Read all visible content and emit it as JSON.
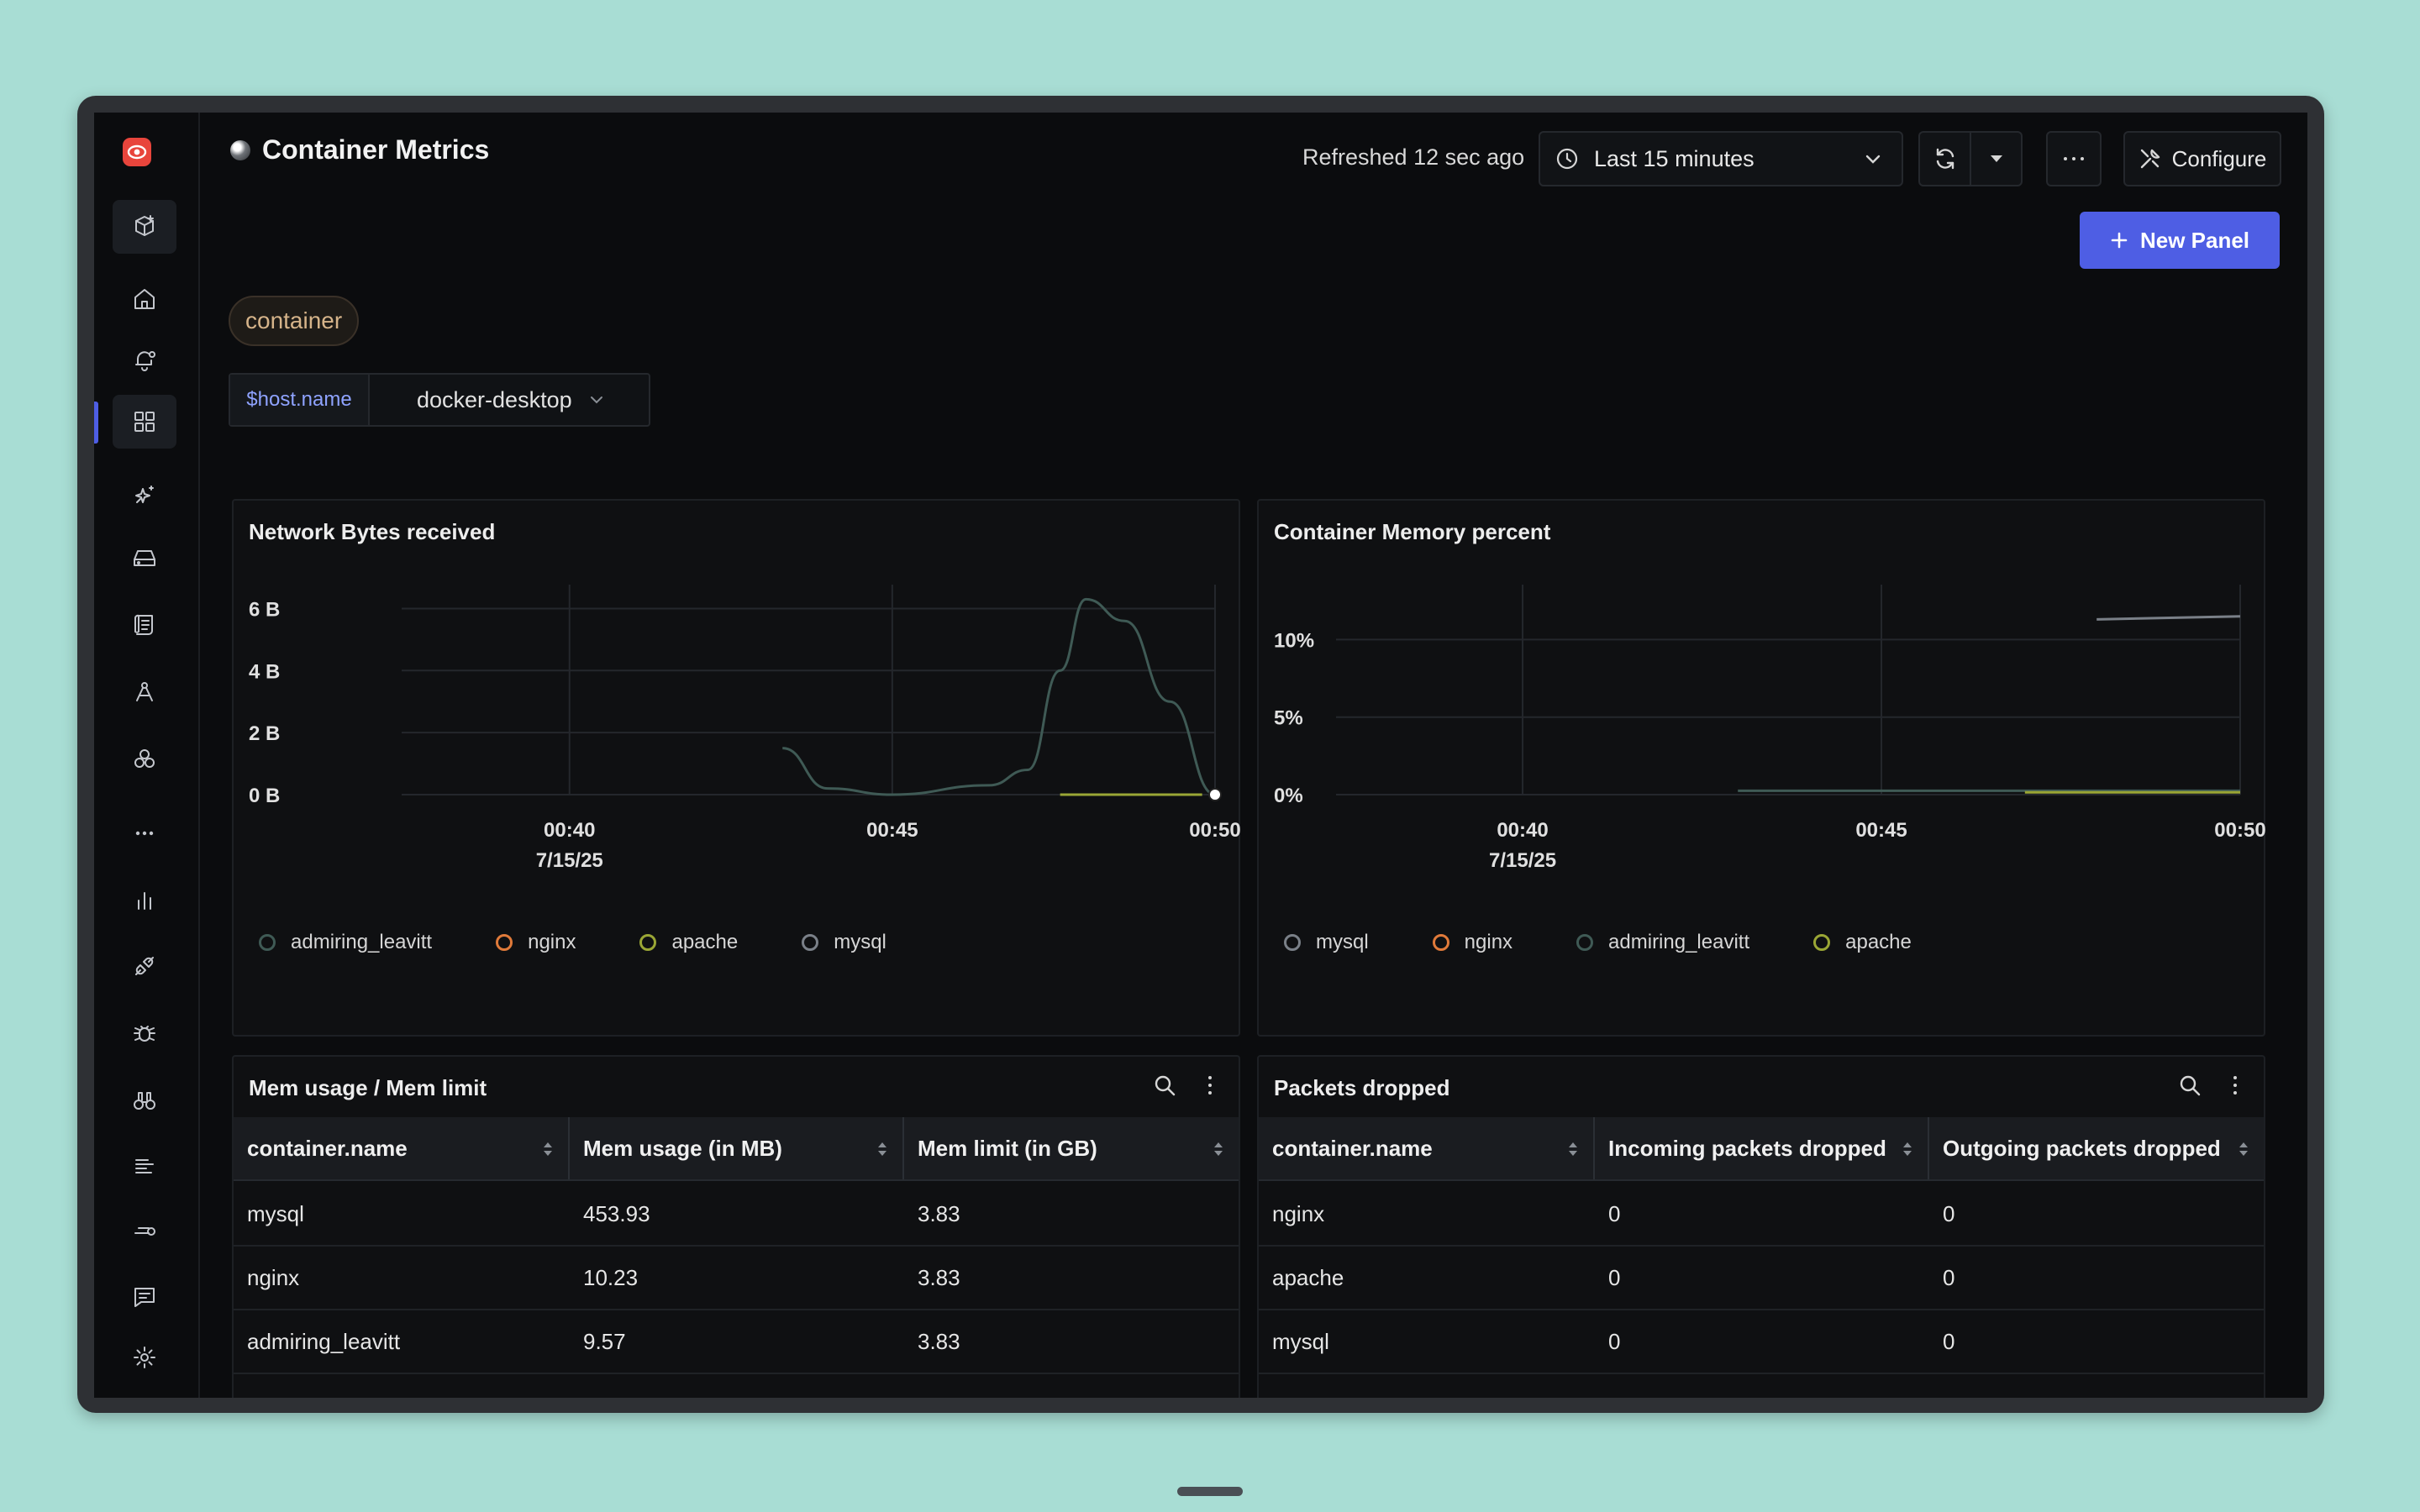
{
  "header": {
    "title": "Container Metrics",
    "refreshed": "Refreshed 12 sec ago",
    "time_range": "Last 15 minutes",
    "configure_label": "Configure",
    "new_panel_label": "New Panel"
  },
  "tag": "container",
  "variable": {
    "name": "$host.name",
    "value": "docker-desktop"
  },
  "sidebar": {
    "items": [
      "logo",
      "cube-add-icon",
      "home-icon",
      "alert-bell-icon",
      "dashboards-icon",
      "sparkle-icon",
      "storage-icon",
      "logs-icon",
      "pipelines-icon",
      "services-icon",
      "more-icon",
      "metrics-icon",
      "integrations-icon",
      "bug-icon",
      "binoculars-icon",
      "list-icon",
      "key-icon",
      "messages-icon",
      "settings-icon"
    ],
    "active": "dashboards-icon"
  },
  "panels": {
    "network": {
      "title": "Network Bytes received",
      "legend": [
        {
          "name": "admiring_leavitt",
          "color": "#3f5a55"
        },
        {
          "name": "nginx",
          "color": "#e07a3a"
        },
        {
          "name": "apache",
          "color": "#9aa635"
        },
        {
          "name": "mysql",
          "color": "#7a8088"
        }
      ]
    },
    "memory": {
      "title": "Container Memory percent",
      "legend": [
        {
          "name": "mysql",
          "color": "#7a8088"
        },
        {
          "name": "nginx",
          "color": "#e07a3a"
        },
        {
          "name": "admiring_leavitt",
          "color": "#3f5a55"
        },
        {
          "name": "apache",
          "color": "#9aa635"
        }
      ]
    },
    "mem_table": {
      "title": "Mem usage / Mem limit",
      "columns": [
        "container.name",
        "Mem usage (in MB)",
        "Mem limit (in GB)"
      ],
      "rows": [
        [
          "mysql",
          "453.93",
          "3.83"
        ],
        [
          "nginx",
          "10.23",
          "3.83"
        ],
        [
          "admiring_leavitt",
          "9.57",
          "3.83"
        ]
      ]
    },
    "packets_table": {
      "title": "Packets dropped",
      "columns": [
        "container.name",
        "Incoming packets dropped",
        "Outgoing packets dropped"
      ],
      "rows": [
        [
          "nginx",
          "0",
          "0"
        ],
        [
          "apache",
          "0",
          "0"
        ],
        [
          "mysql",
          "0",
          "0"
        ]
      ]
    }
  },
  "chart_data": [
    {
      "type": "line",
      "title": "Network Bytes received",
      "y_ticks": [
        "6 B",
        "4 B",
        "2 B",
        "0 B"
      ],
      "x_ticks": [
        "00:40",
        "00:45",
        "00:50"
      ],
      "x_date": "7/15/25",
      "ylim": [
        0,
        6.5
      ],
      "grid": true,
      "legend_position": "bottom",
      "series": [
        {
          "name": "admiring_leavitt",
          "color": "#3f5a55",
          "points": [
            [
              43.3,
              1.5
            ],
            [
              44.0,
              0.2
            ],
            [
              45.0,
              0.0
            ],
            [
              46.5,
              0.3
            ],
            [
              47.1,
              0.8
            ],
            [
              47.6,
              4.0
            ],
            [
              48.0,
              6.3
            ],
            [
              48.6,
              5.6
            ],
            [
              49.3,
              3.0
            ],
            [
              50.0,
              0.0
            ]
          ]
        },
        {
          "name": "apache",
          "color": "#9aa635",
          "points": [
            [
              47.6,
              0.0
            ],
            [
              49.8,
              0.0
            ]
          ]
        },
        {
          "name": "mysql",
          "color": "#7a8088",
          "points": [
            [
              50.0,
              0.0
            ]
          ]
        }
      ]
    },
    {
      "type": "line",
      "title": "Container Memory percent",
      "y_ticks": [
        "10%",
        "5%",
        "0%"
      ],
      "x_ticks": [
        "00:40",
        "00:45",
        "00:50"
      ],
      "x_date": "7/15/25",
      "ylim": [
        0,
        13
      ],
      "grid": true,
      "legend_position": "bottom",
      "series": [
        {
          "name": "mysql",
          "color": "#7a8088",
          "points": [
            [
              48.0,
              11.3
            ],
            [
              50.0,
              11.5
            ]
          ]
        },
        {
          "name": "admiring_leavitt",
          "color": "#3f5a55",
          "points": [
            [
              43.0,
              0.25
            ],
            [
              50.0,
              0.25
            ]
          ]
        },
        {
          "name": "apache",
          "color": "#9aa635",
          "points": [
            [
              47.0,
              0.15
            ],
            [
              50.0,
              0.15
            ]
          ]
        }
      ]
    }
  ]
}
